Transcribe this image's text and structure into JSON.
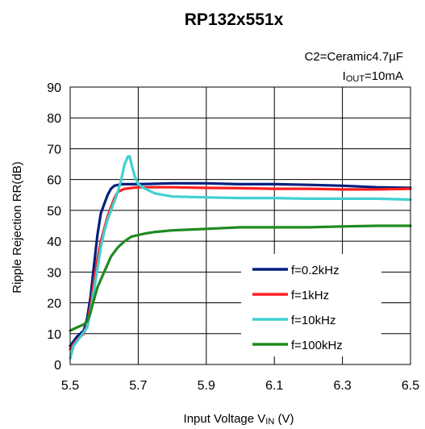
{
  "chart_data": {
    "type": "line",
    "title": "RP132x551x",
    "annotations": {
      "capacitor": "C2=Ceramic4.7µF",
      "current_main": "I",
      "current_sub": "OUT",
      "current_value": "=10mA"
    },
    "xlabel": {
      "main": "Input Voltage V",
      "sub": "IN",
      "unit": " (V)"
    },
    "ylabel": "Ripple Rejection RR(dB)",
    "xlim": [
      5.5,
      6.5
    ],
    "ylim": [
      0,
      90
    ],
    "xticks": [
      "5.5",
      "5.7",
      "5.9",
      "6.1",
      "6.3",
      "6.5"
    ],
    "yticks": [
      "0",
      "10",
      "20",
      "30",
      "40",
      "50",
      "60",
      "70",
      "80",
      "90"
    ],
    "grid": true,
    "legend_position": "bottom-right",
    "series": [
      {
        "name": "f=0.2kHz",
        "color": "#001f7f",
        "points": [
          [
            5.5,
            6
          ],
          [
            5.52,
            9
          ],
          [
            5.54,
            11
          ],
          [
            5.55,
            15
          ],
          [
            5.56,
            22
          ],
          [
            5.57,
            32
          ],
          [
            5.58,
            42
          ],
          [
            5.59,
            49
          ],
          [
            5.6,
            52
          ],
          [
            5.61,
            55
          ],
          [
            5.62,
            57
          ],
          [
            5.63,
            58
          ],
          [
            5.65,
            58.5
          ],
          [
            5.7,
            58.5
          ],
          [
            5.8,
            58.8
          ],
          [
            5.9,
            58.8
          ],
          [
            6.0,
            58.5
          ],
          [
            6.1,
            58.5
          ],
          [
            6.2,
            58.3
          ],
          [
            6.3,
            58
          ],
          [
            6.4,
            57.5
          ],
          [
            6.5,
            57.3
          ]
        ]
      },
      {
        "name": "f=1kHz",
        "color": "#ff1f1f",
        "points": [
          [
            5.5,
            5
          ],
          [
            5.52,
            8
          ],
          [
            5.54,
            10
          ],
          [
            5.55,
            13
          ],
          [
            5.56,
            19
          ],
          [
            5.57,
            27
          ],
          [
            5.58,
            34
          ],
          [
            5.59,
            40
          ],
          [
            5.6,
            44
          ],
          [
            5.61,
            48
          ],
          [
            5.62,
            51
          ],
          [
            5.63,
            54
          ],
          [
            5.64,
            56
          ],
          [
            5.66,
            57
          ],
          [
            5.7,
            57.5
          ],
          [
            5.8,
            57.5
          ],
          [
            5.9,
            57.3
          ],
          [
            6.0,
            57.2
          ],
          [
            6.1,
            57
          ],
          [
            6.2,
            57
          ],
          [
            6.3,
            56.8
          ],
          [
            6.4,
            56.8
          ],
          [
            6.5,
            57
          ]
        ]
      },
      {
        "name": "f=10kHz",
        "color": "#3fd0d0",
        "points": [
          [
            5.5,
            2
          ],
          [
            5.51,
            6
          ],
          [
            5.53,
            9
          ],
          [
            5.55,
            12
          ],
          [
            5.56,
            17
          ],
          [
            5.57,
            24
          ],
          [
            5.58,
            31
          ],
          [
            5.59,
            38
          ],
          [
            5.6,
            43
          ],
          [
            5.61,
            47
          ],
          [
            5.62,
            50
          ],
          [
            5.63,
            53
          ],
          [
            5.64,
            56
          ],
          [
            5.65,
            60
          ],
          [
            5.66,
            65
          ],
          [
            5.67,
            67.5
          ],
          [
            5.675,
            67.5
          ],
          [
            5.68,
            65
          ],
          [
            5.69,
            61
          ],
          [
            5.7,
            58.5
          ],
          [
            5.72,
            57
          ],
          [
            5.75,
            55.5
          ],
          [
            5.8,
            54.5
          ],
          [
            5.9,
            54.2
          ],
          [
            6.0,
            54
          ],
          [
            6.1,
            54
          ],
          [
            6.2,
            53.8
          ],
          [
            6.3,
            53.8
          ],
          [
            6.4,
            53.8
          ],
          [
            6.5,
            53.5
          ]
        ]
      },
      {
        "name": "f=100kHz",
        "color": "#1f8a1f",
        "points": [
          [
            5.5,
            11
          ],
          [
            5.52,
            12
          ],
          [
            5.54,
            13
          ],
          [
            5.55,
            14
          ],
          [
            5.56,
            17
          ],
          [
            5.57,
            21
          ],
          [
            5.58,
            25
          ],
          [
            5.6,
            30
          ],
          [
            5.62,
            35
          ],
          [
            5.64,
            38
          ],
          [
            5.66,
            40
          ],
          [
            5.68,
            41.5
          ],
          [
            5.7,
            42
          ],
          [
            5.72,
            42.5
          ],
          [
            5.75,
            43
          ],
          [
            5.8,
            43.5
          ],
          [
            5.9,
            44
          ],
          [
            6.0,
            44.5
          ],
          [
            6.1,
            44.5
          ],
          [
            6.2,
            44.5
          ],
          [
            6.3,
            44.8
          ],
          [
            6.4,
            45
          ],
          [
            6.5,
            45
          ]
        ]
      }
    ]
  }
}
